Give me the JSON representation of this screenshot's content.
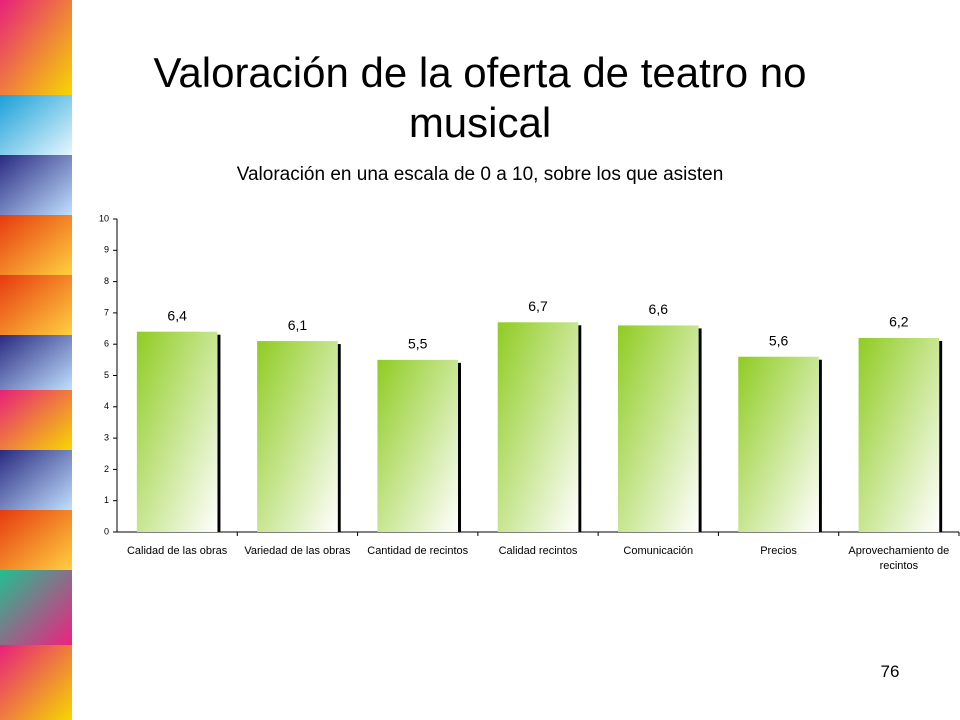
{
  "chart_data": {
    "type": "bar",
    "title": "Valoración de la oferta de teatro no musical",
    "subtitle": "Valoración en una escala de 0 a 10, sobre los que asisten",
    "categories": [
      "Calidad de las obras",
      "Variedad de las obras",
      "Cantidad de recintos",
      "Calidad recintos",
      "Comunicación",
      "Precios",
      "Aprovechamiento de recintos"
    ],
    "values": [
      6.4,
      6.1,
      5.5,
      6.7,
      6.6,
      5.6,
      6.2
    ],
    "value_labels": [
      "6,4",
      "6,1",
      "5,5",
      "6,7",
      "6,6",
      "5,6",
      "6,2"
    ],
    "color": "#8fcc22",
    "ylim": [
      0,
      10
    ],
    "yticks": [
      0,
      1,
      2,
      3,
      4,
      5,
      6,
      7,
      8,
      9,
      10
    ],
    "grid": false
  },
  "page_number": "76"
}
